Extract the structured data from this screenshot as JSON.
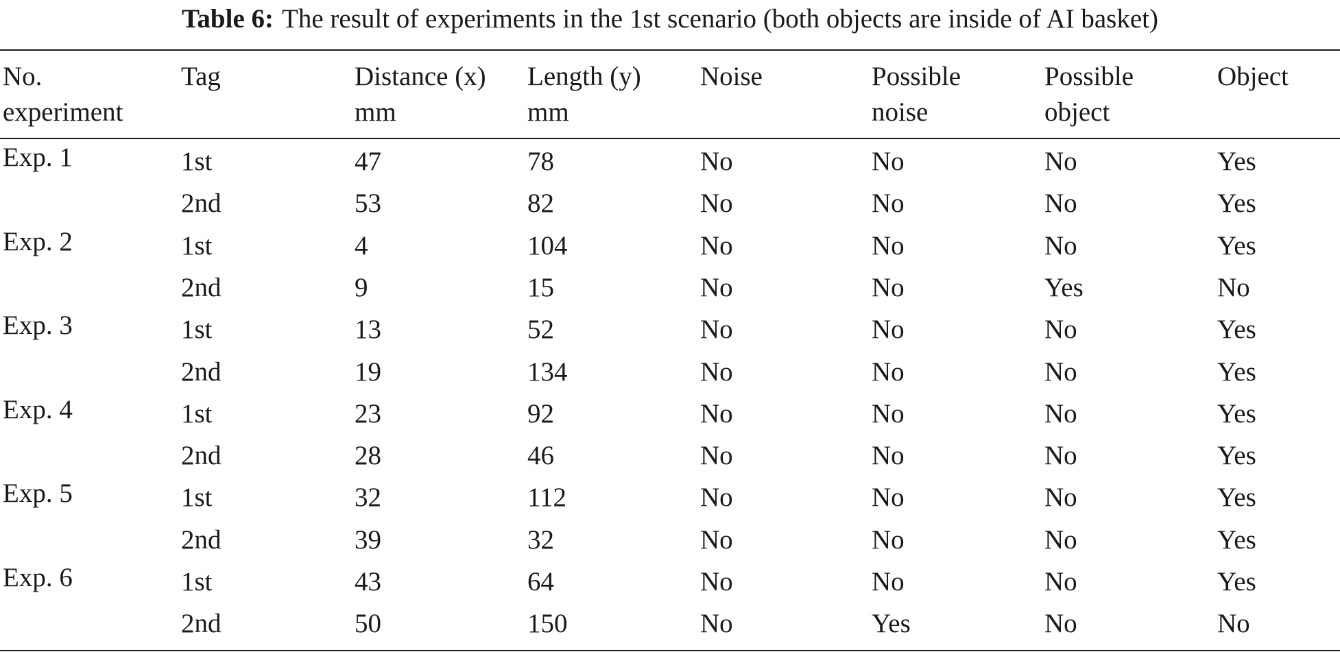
{
  "caption": {
    "label": "Table 6:",
    "text": "The result of experiments in the 1st scenario (both objects are inside of AI basket)"
  },
  "headers": [
    [
      "No.",
      "experiment"
    ],
    [
      "Tag"
    ],
    [
      "Distance (x)",
      "mm"
    ],
    [
      "Length (y)",
      "mm"
    ],
    [
      "Noise"
    ],
    [
      "Possible",
      "noise"
    ],
    [
      "Possible",
      "object"
    ],
    [
      "Object"
    ]
  ],
  "rows": [
    [
      "Exp. 1",
      "1st",
      "47",
      "78",
      "No",
      "No",
      "No",
      "Yes"
    ],
    [
      "",
      "2nd",
      "53",
      "82",
      "No",
      "No",
      "No",
      "Yes"
    ],
    [
      "Exp. 2",
      "1st",
      "4",
      "104",
      "No",
      "No",
      "No",
      "Yes"
    ],
    [
      "",
      "2nd",
      "9",
      "15",
      "No",
      "No",
      "Yes",
      "No"
    ],
    [
      "Exp. 3",
      "1st",
      "13",
      "52",
      "No",
      "No",
      "No",
      "Yes"
    ],
    [
      "",
      "2nd",
      "19",
      "134",
      "No",
      "No",
      "No",
      "Yes"
    ],
    [
      "Exp. 4",
      "1st",
      "23",
      "92",
      "No",
      "No",
      "No",
      "Yes"
    ],
    [
      "",
      "2nd",
      "28",
      "46",
      "No",
      "No",
      "No",
      "Yes"
    ],
    [
      "Exp. 5",
      "1st",
      "32",
      "112",
      "No",
      "No",
      "No",
      "Yes"
    ],
    [
      "",
      "2nd",
      "39",
      "32",
      "No",
      "No",
      "No",
      "Yes"
    ],
    [
      "Exp. 6",
      "1st",
      "43",
      "64",
      "No",
      "No",
      "No",
      "Yes"
    ],
    [
      "",
      "2nd",
      "50",
      "150",
      "No",
      "Yes",
      "No",
      "No"
    ]
  ]
}
